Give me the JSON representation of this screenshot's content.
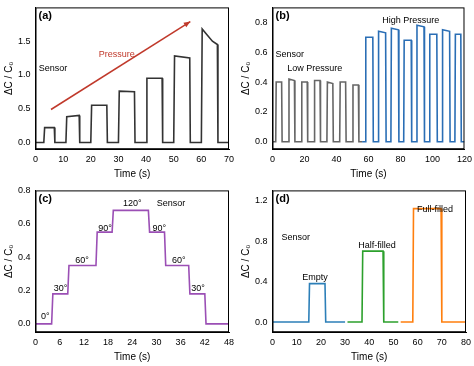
{
  "chart_data": [
    {
      "type": "line",
      "title": "(a)",
      "x_label": "Time (s)",
      "y_label": "ΔC / C₀",
      "xlim": [
        0,
        70
      ],
      "xticks": [
        0,
        10,
        20,
        30,
        40,
        50,
        60,
        70
      ],
      "ylim": [
        -0.1,
        2.0
      ],
      "yticks": [
        {
          "value": 0,
          "label": "0.0"
        },
        {
          "value": 0.5,
          "label": "0.5"
        },
        {
          "value": 1.0,
          "label": "1.0"
        },
        {
          "value": 1.5,
          "label": "1.5"
        }
      ],
      "grid": false,
      "annotations": [
        "Sensor",
        "Pressure"
      ],
      "series": [
        {
          "color": "#333333",
          "x": [
            0,
            3,
            3.3,
            6.8,
            7,
            11,
            11.3,
            15.8,
            16,
            20,
            20.3,
            25.8,
            26,
            30,
            30.3,
            35.8,
            36,
            40,
            40.3,
            45.8,
            46,
            50,
            50.3,
            55.8,
            56,
            60,
            60.3,
            61.5,
            64,
            65.8,
            66,
            70
          ],
          "values": [
            0,
            0,
            0.22,
            0.22,
            0,
            0,
            0.38,
            0.4,
            0,
            0,
            0.55,
            0.55,
            0,
            0,
            0.76,
            0.75,
            0,
            0,
            0.95,
            0.95,
            0,
            0,
            1.28,
            1.25,
            0,
            0,
            1.68,
            1.62,
            1.5,
            1.45,
            0,
            0
          ]
        }
      ]
    },
    {
      "type": "line",
      "title": "(b)",
      "x_label": "Time (s)",
      "y_label": "ΔC / C₀",
      "xlim": [
        0,
        120
      ],
      "xticks": [
        0,
        20,
        40,
        60,
        80,
        100,
        120
      ],
      "ylim": [
        -0.05,
        0.9
      ],
      "yticks": [
        {
          "value": 0,
          "label": "0.0"
        },
        {
          "value": 0.2,
          "label": "0.2"
        },
        {
          "value": 0.4,
          "label": "0.4"
        },
        {
          "value": 0.6,
          "label": "0.6"
        },
        {
          "value": 0.8,
          "label": "0.8"
        }
      ],
      "grid": false,
      "annotations": [
        "Sensor",
        "Low Pressure",
        "High Pressure"
      ],
      "series": [
        {
          "color": "#666666",
          "x": [
            0,
            2,
            2.3,
            5.7,
            6,
            10,
            10.3,
            13.7,
            14,
            18,
            18.3,
            21.7,
            22,
            26,
            26.3,
            29.7,
            30,
            34,
            34.3,
            37.7,
            38,
            42,
            42.3,
            45.7,
            46,
            50,
            50.3,
            53.7,
            54,
            56
          ],
          "values": [
            0,
            0,
            0.4,
            0.4,
            0,
            0,
            0.42,
            0.41,
            0,
            0,
            0.4,
            0.4,
            0,
            0,
            0.41,
            0.41,
            0,
            0,
            0.4,
            0.39,
            0,
            0,
            0.4,
            0.4,
            0,
            0,
            0.38,
            0.38,
            0,
            0
          ]
        },
        {
          "color": "#2a6eb5",
          "x": [
            56,
            58,
            58.3,
            62.7,
            63,
            66,
            66.3,
            70.7,
            71,
            74,
            74.3,
            78.7,
            79,
            82,
            82.3,
            86.7,
            87,
            90,
            90.3,
            94.7,
            95,
            98,
            98.3,
            102.7,
            103,
            106,
            106.3,
            110.7,
            111,
            114,
            114.3,
            117.7,
            118,
            120
          ],
          "values": [
            0,
            0,
            0.7,
            0.7,
            0,
            0,
            0.74,
            0.73,
            0,
            0,
            0.76,
            0.75,
            0,
            0,
            0.68,
            0.68,
            0,
            0,
            0.78,
            0.77,
            0,
            0,
            0.72,
            0.72,
            0,
            0,
            0.75,
            0.74,
            0,
            0,
            0.72,
            0.72,
            0,
            0
          ]
        }
      ]
    },
    {
      "type": "line",
      "title": "(c)",
      "x_label": "Time (s)",
      "y_label": "ΔC / C₀",
      "xlim": [
        0,
        48
      ],
      "xticks": [
        0,
        6,
        12,
        18,
        24,
        30,
        36,
        42,
        48
      ],
      "ylim": [
        -0.05,
        0.8
      ],
      "yticks": [
        {
          "value": 0,
          "label": "0.0"
        },
        {
          "value": 0.2,
          "label": "0.2"
        },
        {
          "value": 0.4,
          "label": "0.4"
        },
        {
          "value": 0.6,
          "label": "0.6"
        },
        {
          "value": 0.8,
          "label": "0.8"
        }
      ],
      "grid": false,
      "annotations": [
        "0°",
        "30°",
        "60°",
        "90°",
        "120°",
        "90°",
        "60°",
        "30°",
        "Sensor"
      ],
      "series": [
        {
          "color": "#9b4fb5",
          "x": [
            0,
            4,
            4.3,
            8,
            8.3,
            15,
            15.3,
            19,
            19.3,
            28,
            28.3,
            32,
            32.3,
            38,
            38.3,
            42,
            42.3,
            48
          ],
          "values": [
            0,
            0,
            0.18,
            0.18,
            0.35,
            0.35,
            0.55,
            0.55,
            0.68,
            0.68,
            0.55,
            0.55,
            0.35,
            0.35,
            0.18,
            0.18,
            0,
            0
          ]
        }
      ]
    },
    {
      "type": "line",
      "title": "(d)",
      "x_label": "Time (s)",
      "y_label": "ΔC / C₀",
      "xlim": [
        0,
        80
      ],
      "xticks": [
        0,
        10,
        20,
        30,
        40,
        50,
        60,
        70,
        80
      ],
      "ylim": [
        -0.1,
        1.3
      ],
      "yticks": [
        {
          "value": 0,
          "label": "0.0"
        },
        {
          "value": 0.4,
          "label": "0.4"
        },
        {
          "value": 0.8,
          "label": "0.8"
        },
        {
          "value": 1.2,
          "label": "1.2"
        }
      ],
      "grid": false,
      "annotations": [
        "Sensor",
        "Empty",
        "Half-filled",
        "Full-filled"
      ],
      "series": [
        {
          "color": "#2c7fb8",
          "x": [
            0,
            15,
            15.3,
            21.7,
            22,
            30
          ],
          "values": [
            0,
            0,
            0.38,
            0.38,
            0,
            0
          ]
        },
        {
          "color": "#2ca02c",
          "x": [
            31,
            37,
            37.3,
            45.7,
            46,
            52
          ],
          "values": [
            0,
            0,
            0.7,
            0.7,
            0,
            0
          ]
        },
        {
          "color": "#ff7f0e",
          "x": [
            53,
            58,
            58.3,
            69.7,
            70,
            80
          ],
          "values": [
            0,
            0,
            1.12,
            1.12,
            0,
            0
          ]
        }
      ]
    }
  ]
}
